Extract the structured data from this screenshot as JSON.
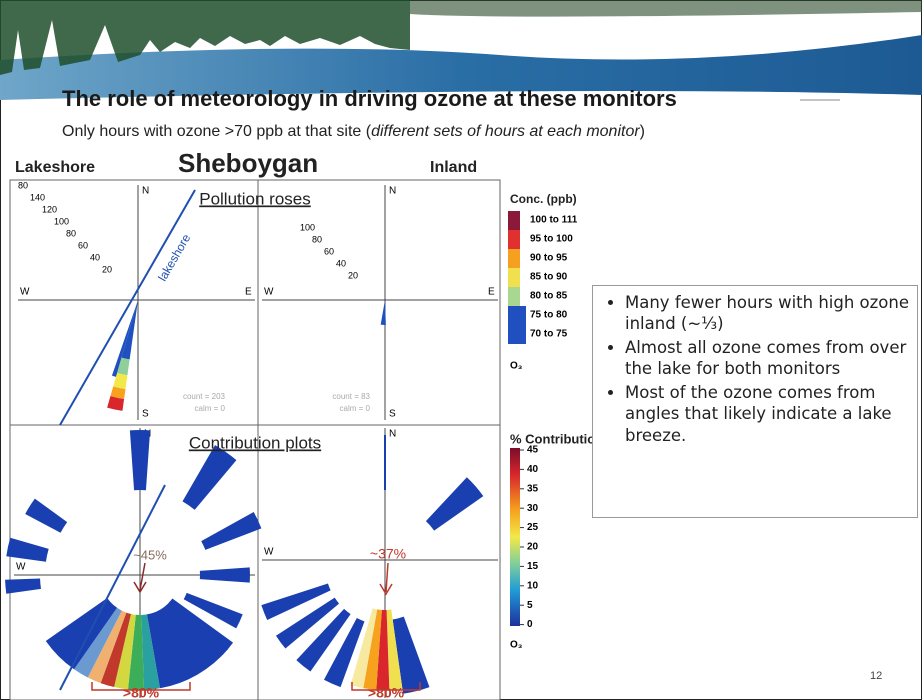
{
  "header": {
    "title": "The role of meteorology in driving ozone at these monitors",
    "subtitle": [
      "Only hours with ozone >70 ppb at that site (",
      "different sets of hours at each monitor",
      ")"
    ]
  },
  "labels": {
    "lakeshore": "Lakeshore",
    "city": "Sheboygan",
    "inland": "Inland"
  },
  "pollution_roses": {
    "title": "Pollution roses",
    "line_label": "lakeshore",
    "directions": [
      "N",
      "S",
      "E",
      "W"
    ],
    "left": {
      "radii": [
        "80",
        "140",
        "120",
        "100",
        "80",
        "60",
        "40",
        "20"
      ],
      "count": "count = 203",
      "calm": "calm = 0"
    },
    "right": {
      "radii": [
        "100",
        "80",
        "60",
        "40",
        "20"
      ],
      "count": "count = 83",
      "calm": "calm = 0"
    }
  },
  "conc_legend": {
    "title": "Conc. (ppb)",
    "items": [
      "100 to 111",
      "95 to 100",
      "90 to 95",
      "85 to 90",
      "80 to 85",
      "75 to 80",
      "70 to 75"
    ],
    "pollutant": "O₃"
  },
  "contribution_plots": {
    "title": "Contribution plots",
    "left_peak": "~45%",
    "right_peak": "~37%",
    "left_bracket": ">80%",
    "right_bracket": ">80%"
  },
  "contribution_legend": {
    "title": "% Contribution",
    "ticks": [
      "45",
      "40",
      "35",
      "30",
      "25",
      "20",
      "15",
      "10",
      "5",
      "0"
    ],
    "pollutant": "O₃"
  },
  "bullets": [
    "Many fewer hours with high ozone inland (~⅓)",
    "Almost all ozone comes from over the lake for both monitors",
    "Most of the ozone comes from angles that likely indicate a lake breeze."
  ],
  "page_number": "12"
}
